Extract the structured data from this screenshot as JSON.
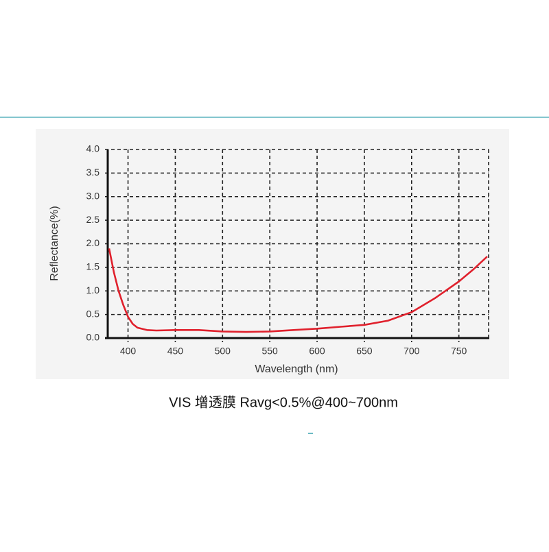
{
  "chart_data": {
    "type": "line",
    "y_label": "Reflectance(%)",
    "x_label": "Wavelength (nm)",
    "caption": "VIS 增透膜 Ravg<0.5%@400~700nm",
    "x": [
      380,
      385,
      390,
      395,
      400,
      405,
      410,
      420,
      430,
      450,
      475,
      500,
      525,
      550,
      575,
      600,
      625,
      650,
      675,
      700,
      725,
      750,
      765,
      780
    ],
    "series": [
      {
        "color": "#e0202c",
        "values": [
          1.9,
          1.4,
          1.0,
          0.7,
          0.45,
          0.3,
          0.22,
          0.17,
          0.16,
          0.17,
          0.17,
          0.14,
          0.13,
          0.14,
          0.17,
          0.2,
          0.24,
          0.28,
          0.37,
          0.55,
          0.85,
          1.2,
          1.45,
          1.73
        ]
      }
    ],
    "xlim": [
      380,
      780
    ],
    "xticks": [
      400,
      450,
      500,
      550,
      600,
      650,
      700,
      750
    ],
    "ylim": [
      0,
      4
    ],
    "yticks": [
      {
        "value": 0,
        "label": "0.0"
      },
      0.5,
      {
        "value": 1,
        "label": "1.0"
      },
      1.5,
      {
        "value": 2,
        "label": "2.0"
      },
      2.5,
      {
        "value": 3,
        "label": "3.0"
      },
      3.5,
      {
        "value": 4,
        "label": "4.0"
      }
    ],
    "grid": true
  }
}
